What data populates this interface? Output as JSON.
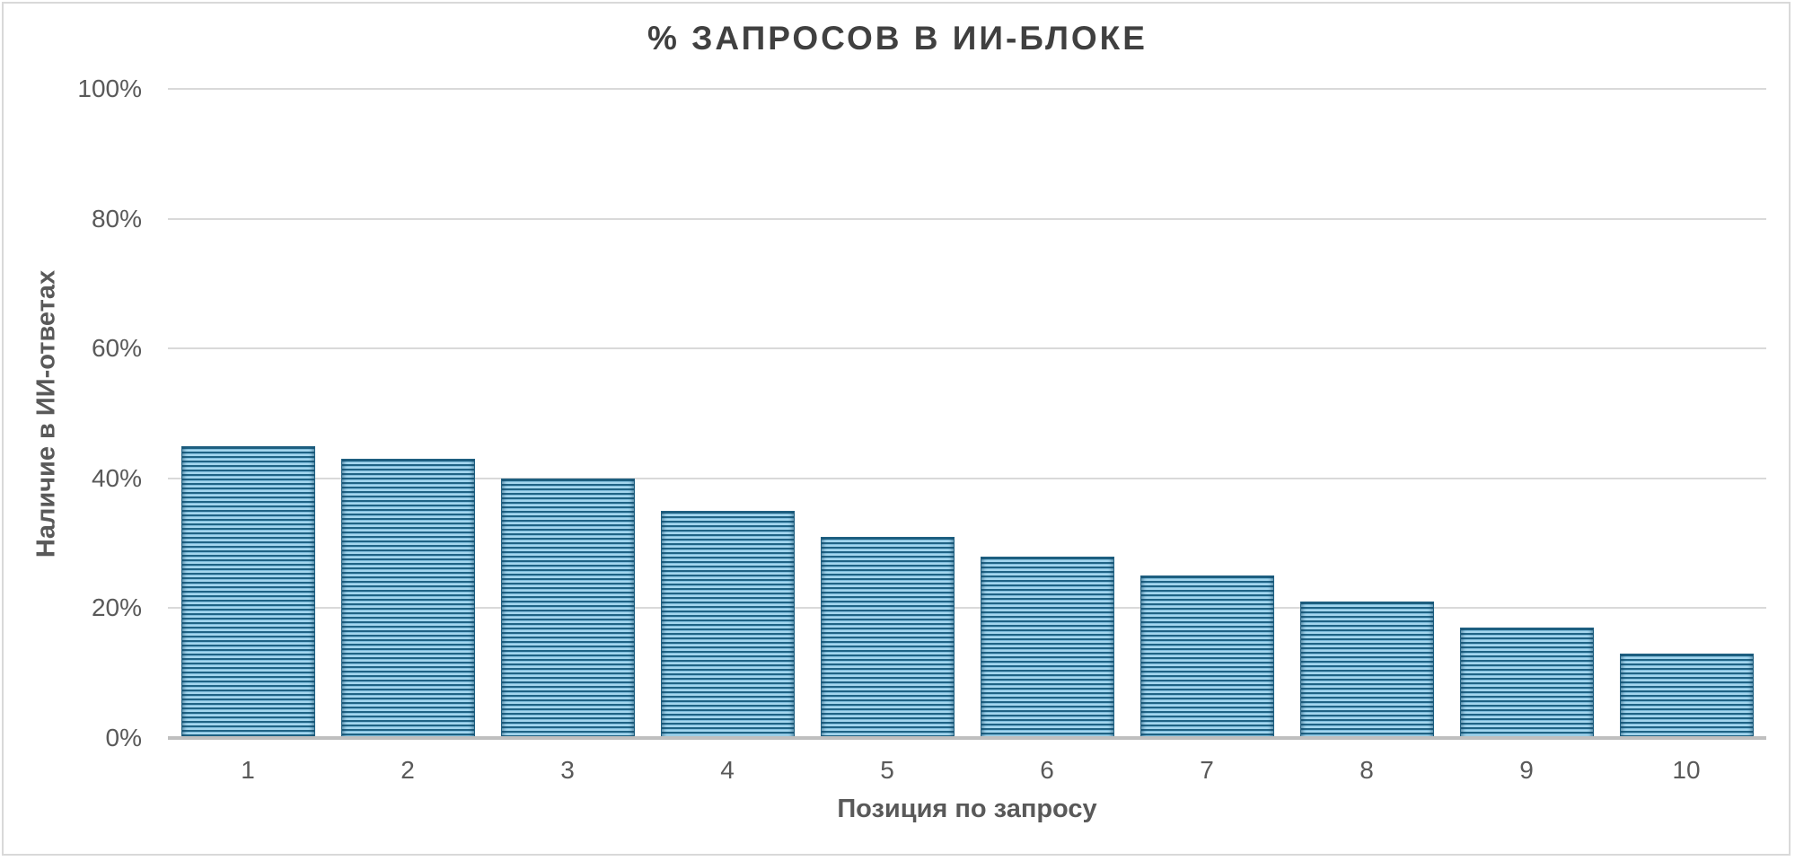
{
  "chart_data": {
    "type": "bar",
    "title": "% ЗАПРОСОВ В ИИ-БЛОКЕ",
    "xlabel": "Позиция по запросу",
    "ylabel": "Наличие в ИИ-ответах",
    "categories": [
      "1",
      "2",
      "3",
      "4",
      "5",
      "6",
      "7",
      "8",
      "9",
      "10"
    ],
    "values": [
      45,
      43,
      40,
      35,
      31,
      28,
      25,
      21,
      17,
      13
    ],
    "value_unit": "%",
    "ylim": [
      0,
      100
    ],
    "yticks": [
      "0%",
      "20%",
      "40%",
      "60%",
      "80%",
      "100%"
    ],
    "grid": true,
    "legend": null,
    "bar_color": "#2a7aa3",
    "bar_pattern": "horizontal stripes dark teal / light blue"
  }
}
